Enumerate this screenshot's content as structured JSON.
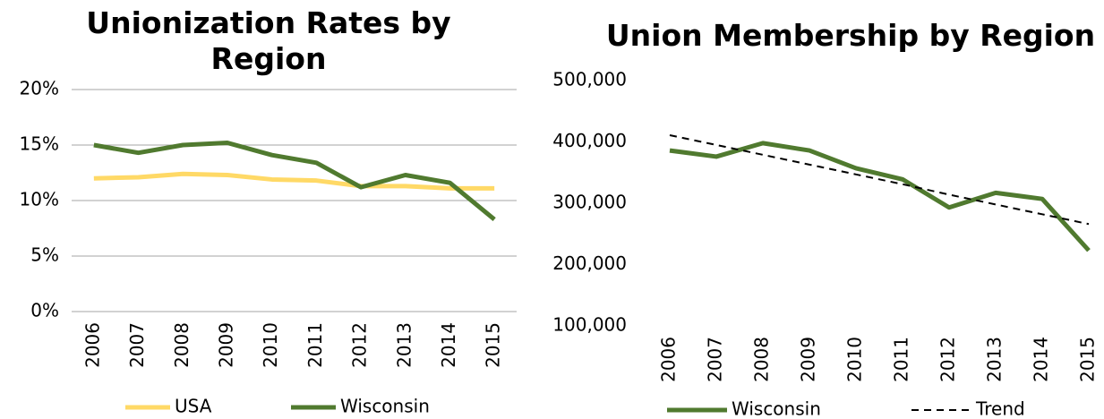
{
  "chart_data": [
    {
      "type": "line",
      "title": "Unionization Rates by Region",
      "categories": [
        "2006",
        "2007",
        "2008",
        "2009",
        "2010",
        "2011",
        "2012",
        "2013",
        "2014",
        "2015"
      ],
      "series": [
        {
          "name": "USA",
          "color": "#ffd966",
          "values": [
            12.0,
            12.1,
            12.4,
            12.3,
            11.9,
            11.8,
            11.3,
            11.3,
            11.1,
            11.1
          ]
        },
        {
          "name": "Wisconsin",
          "color": "#507a2f",
          "values": [
            15.0,
            14.3,
            15.0,
            15.2,
            14.1,
            13.4,
            11.2,
            12.3,
            11.6,
            8.3
          ]
        }
      ],
      "ylim": [
        0,
        20
      ],
      "yticks": [
        {
          "value": 0,
          "label": "0%"
        },
        {
          "value": 5,
          "label": "5%"
        },
        {
          "value": 10,
          "label": "10%"
        },
        {
          "value": 15,
          "label": "15%"
        },
        {
          "value": 20,
          "label": "20%"
        }
      ],
      "grid": true
    },
    {
      "type": "line",
      "title": "Union Membership by Region",
      "categories": [
        "2006",
        "2007",
        "2008",
        "2009",
        "2010",
        "2011",
        "2012",
        "2013",
        "2014",
        "2015"
      ],
      "series": [
        {
          "name": "Wisconsin",
          "color": "#507a2f",
          "values": [
            386000,
            376000,
            398000,
            386000,
            357000,
            339000,
            293000,
            317000,
            307000,
            223000
          ]
        },
        {
          "name": "Trend",
          "color": "#000000",
          "dashed": true,
          "values": [
            411000,
            395000,
            379000,
            363000,
            347000,
            331000,
            314000,
            298000,
            282000,
            266000
          ]
        }
      ],
      "ylim": [
        100000,
        500000
      ],
      "yticks": [
        {
          "value": 100000,
          "label": "100,000"
        },
        {
          "value": 200000,
          "label": "200,000"
        },
        {
          "value": 300000,
          "label": "300,000"
        },
        {
          "value": 400000,
          "label": "400,000"
        },
        {
          "value": 500000,
          "label": "500,000"
        }
      ],
      "grid": false
    }
  ]
}
